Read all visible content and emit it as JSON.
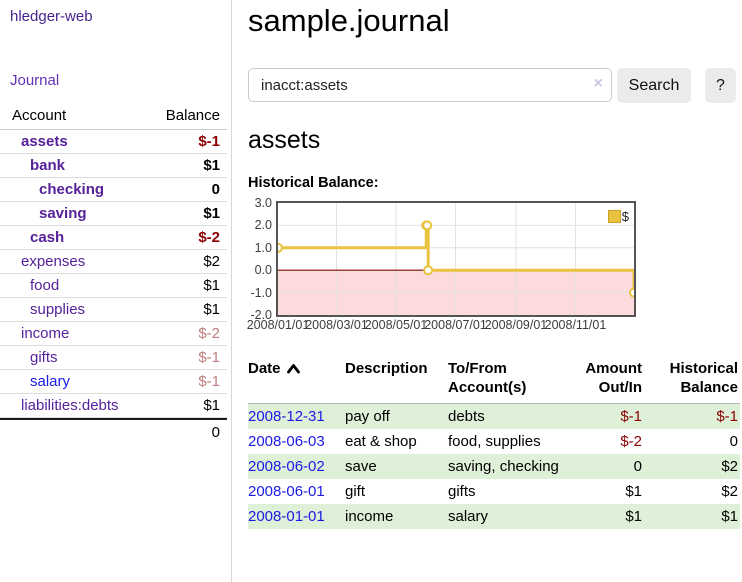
{
  "app": {
    "brand": "hledger-web",
    "nav": {
      "journal": "Journal"
    }
  },
  "sidebar": {
    "header": {
      "account": "Account",
      "balance": "Balance"
    },
    "accounts": [
      {
        "name": "assets",
        "depth": 1,
        "bold": true,
        "balance": "$-1",
        "neg": "dark"
      },
      {
        "name": "bank",
        "depth": 2,
        "bold": true,
        "balance": "$1"
      },
      {
        "name": "checking",
        "depth": 3,
        "bold": true,
        "balance": "0"
      },
      {
        "name": "saving",
        "depth": 3,
        "bold": true,
        "balance": "$1"
      },
      {
        "name": "cash",
        "depth": 2,
        "bold": true,
        "balance": "$-2",
        "neg": "dark"
      },
      {
        "name": "expenses",
        "depth": 1,
        "bold": false,
        "balance": "$2"
      },
      {
        "name": "food",
        "depth": 2,
        "bold": false,
        "balance": "$1"
      },
      {
        "name": "supplies",
        "depth": 2,
        "bold": false,
        "balance": "$1"
      },
      {
        "name": "income",
        "depth": 1,
        "bold": false,
        "balance": "$-2",
        "neg": "light"
      },
      {
        "name": "gifts",
        "depth": 2,
        "bold": false,
        "balance": "$-1",
        "neg": "light"
      },
      {
        "name": "salary",
        "depth": 2,
        "bold": false,
        "balance": "$-1",
        "neg": "light",
        "link": "blue"
      },
      {
        "name": "liabilities:debts",
        "depth": 1,
        "bold": false,
        "balance": "$1"
      }
    ],
    "total": "0"
  },
  "main": {
    "title": "sample.journal",
    "search": {
      "value": "inacct:assets",
      "clear_icon": "×",
      "button": "Search",
      "help_button": "?"
    },
    "account_title": "assets",
    "chart_label": "Historical Balance:"
  },
  "chart_data": {
    "type": "line",
    "style": "steps",
    "title": "Historical Balance",
    "series": [
      {
        "name": "$",
        "points": [
          [
            "2008-01-01",
            1
          ],
          [
            "2008-06-01",
            2
          ],
          [
            "2008-06-02",
            2
          ],
          [
            "2008-06-03",
            0
          ],
          [
            "2008-12-31",
            -1
          ]
        ]
      }
    ],
    "xrange": [
      "2008-01-01",
      "2008-12-31"
    ],
    "ylim": [
      -2,
      3
    ],
    "ytick_values": [
      3,
      2,
      1,
      0,
      -1,
      -2
    ],
    "ytick_labels": [
      "3.0",
      "2.0",
      "1.0",
      "0.0",
      "-1.0",
      "-2.0"
    ],
    "xtick_dates": [
      "2008-01-01",
      "2008-03-01",
      "2008-05-01",
      "2008-07-01",
      "2008-09-01",
      "2008-11-01"
    ],
    "xtick_labels": [
      "2008/01/01",
      "2008/03/01",
      "2008/05/01",
      "2008/07/01",
      "2008/09/01",
      "2008/11/01"
    ],
    "legend": {
      "label": "$",
      "position": "top-right"
    },
    "grid": true,
    "colors": {
      "line": "#e9c340",
      "marker_fill": "#ffffff",
      "negative_fill": "#fbdbdb",
      "zero_line": "#7c0a02",
      "gridline": "#e2e2e2",
      "frame": "#545454"
    }
  },
  "register": {
    "headers": [
      {
        "label": "Date",
        "sorted": "asc",
        "align": "left"
      },
      {
        "label": "Description",
        "align": "left"
      },
      {
        "label": "To/From Account(s)",
        "align": "left"
      },
      {
        "label": "Amount Out/In",
        "align": "right"
      },
      {
        "label": "Historical Balance",
        "align": "right"
      }
    ],
    "rows": [
      {
        "date": "2008-12-31",
        "description": "pay off",
        "accounts": "debts",
        "amount": "$-1",
        "amount_neg": true,
        "balance": "$-1",
        "balance_neg": true
      },
      {
        "date": "2008-06-03",
        "description": "eat & shop",
        "accounts": "food, supplies",
        "amount": "$-2",
        "amount_neg": true,
        "balance": "0",
        "balance_neg": false
      },
      {
        "date": "2008-06-02",
        "description": "save",
        "accounts": "saving, checking",
        "amount": "0",
        "amount_neg": false,
        "balance": "$2",
        "balance_neg": false
      },
      {
        "date": "2008-06-01",
        "description": "gift",
        "accounts": "gifts",
        "amount": "$1",
        "amount_neg": false,
        "balance": "$2",
        "balance_neg": false
      },
      {
        "date": "2008-01-01",
        "description": "income",
        "accounts": "salary",
        "amount": "$1",
        "amount_neg": false,
        "balance": "$1",
        "balance_neg": false
      }
    ]
  },
  "colors": {
    "link_purple": "#552299",
    "link_blue": "#1a1ae6",
    "negative_dark": "#8b0000",
    "negative_light": "#c17d7d",
    "row_stripe_green": "#dff0d8",
    "button_gray": "#ebebeb"
  }
}
